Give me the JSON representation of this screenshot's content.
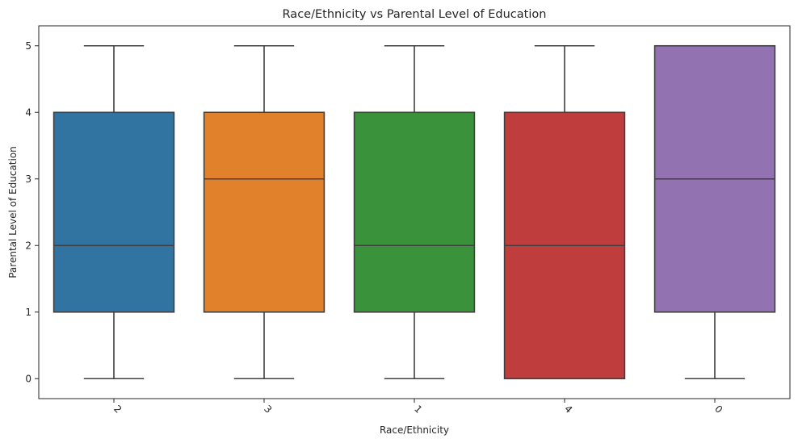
{
  "chart_data": {
    "type": "box",
    "title": "Race/Ethnicity vs Parental Level of Education",
    "xlabel": "Race/Ethnicity",
    "ylabel": "Parental Level of Education",
    "categories": [
      "2",
      "3",
      "1",
      "4",
      "0"
    ],
    "ylim": [
      -0.3,
      5.3
    ],
    "yticks": [
      0,
      1,
      2,
      3,
      4,
      5
    ],
    "xtick_rotation": 45,
    "grid": false,
    "legend": "none",
    "boxes": [
      {
        "category": "2",
        "min": 0,
        "q1": 1,
        "median": 2,
        "q3": 4,
        "max": 5,
        "color": "#3274a1"
      },
      {
        "category": "3",
        "min": 0,
        "q1": 1,
        "median": 3,
        "q3": 4,
        "max": 5,
        "color": "#e1812c"
      },
      {
        "category": "1",
        "min": 0,
        "q1": 1,
        "median": 2,
        "q3": 4,
        "max": 5,
        "color": "#3a923a"
      },
      {
        "category": "4",
        "min": 0,
        "q1": 0,
        "median": 2,
        "q3": 4,
        "max": 5,
        "color": "#c03d3e"
      },
      {
        "category": "0",
        "min": 0,
        "q1": 1,
        "median": 3,
        "q3": 5,
        "max": 5,
        "color": "#9372b2"
      }
    ]
  }
}
